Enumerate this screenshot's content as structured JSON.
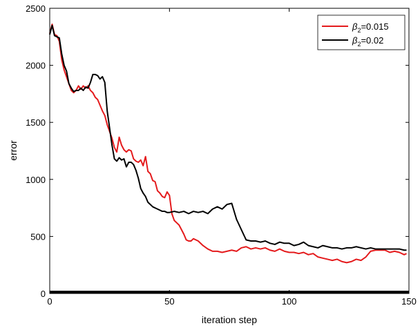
{
  "chart_data": {
    "type": "line",
    "xlabel": "iteration step",
    "ylabel": "error",
    "xlim": [
      0,
      150
    ],
    "ylim": [
      0,
      2500
    ],
    "xticks": [
      0,
      50,
      100,
      150
    ],
    "yticks": [
      0,
      500,
      1000,
      1500,
      2000,
      2500
    ],
    "grid": false,
    "legend_position": "top-right",
    "series": [
      {
        "name_symbol": "β",
        "name_sub": "2",
        "name_suffix": "=0.015",
        "color": "#e41a1c",
        "x": [
          0,
          1,
          2,
          3,
          4,
          5,
          6,
          7,
          8,
          9,
          10,
          11,
          12,
          13,
          14,
          15,
          16,
          17,
          18,
          19,
          20,
          21,
          22,
          23,
          24,
          25,
          26,
          27,
          28,
          29,
          30,
          31,
          32,
          33,
          34,
          35,
          36,
          37,
          38,
          39,
          40,
          41,
          42,
          43,
          44,
          45,
          46,
          47,
          48,
          49,
          50,
          51,
          52,
          53,
          54,
          55,
          56,
          57,
          58,
          59,
          60,
          62,
          64,
          66,
          68,
          70,
          72,
          74,
          76,
          78,
          80,
          82,
          84,
          86,
          88,
          90,
          92,
          94,
          96,
          98,
          100,
          102,
          104,
          106,
          108,
          110,
          112,
          114,
          116,
          118,
          120,
          122,
          124,
          126,
          128,
          130,
          132,
          134,
          136,
          138,
          140,
          142,
          144,
          146,
          148,
          149
        ],
        "y": [
          2280,
          2360,
          2270,
          2260,
          2210,
          2050,
          1960,
          1900,
          1840,
          1780,
          1760,
          1780,
          1820,
          1790,
          1820,
          1800,
          1820,
          1780,
          1760,
          1720,
          1700,
          1650,
          1600,
          1560,
          1480,
          1420,
          1360,
          1280,
          1240,
          1370,
          1300,
          1260,
          1240,
          1260,
          1250,
          1180,
          1160,
          1150,
          1170,
          1120,
          1200,
          1070,
          1050,
          990,
          980,
          900,
          880,
          850,
          840,
          890,
          860,
          700,
          640,
          620,
          600,
          560,
          520,
          470,
          460,
          460,
          480,
          460,
          420,
          390,
          370,
          370,
          360,
          370,
          380,
          370,
          400,
          410,
          390,
          400,
          390,
          400,
          380,
          370,
          390,
          370,
          360,
          360,
          350,
          360,
          340,
          350,
          320,
          310,
          300,
          290,
          300,
          280,
          270,
          280,
          300,
          290,
          320,
          370,
          380,
          380,
          380,
          360,
          370,
          360,
          340,
          350
        ],
        "values_note": ""
      },
      {
        "name_symbol": "β",
        "name_sub": "2",
        "name_suffix": "=0.02",
        "color": "#000000",
        "x": [
          0,
          1,
          2,
          3,
          4,
          5,
          6,
          7,
          8,
          9,
          10,
          11,
          12,
          13,
          14,
          15,
          16,
          17,
          18,
          19,
          20,
          21,
          22,
          23,
          24,
          25,
          26,
          27,
          28,
          29,
          30,
          31,
          32,
          33,
          34,
          35,
          36,
          37,
          38,
          39,
          40,
          41,
          42,
          43,
          44,
          45,
          46,
          47,
          48,
          49,
          50,
          52,
          54,
          56,
          58,
          60,
          62,
          64,
          66,
          68,
          70,
          72,
          74,
          76,
          78,
          80,
          82,
          84,
          86,
          88,
          90,
          92,
          94,
          96,
          98,
          100,
          102,
          104,
          106,
          108,
          110,
          112,
          114,
          116,
          118,
          120,
          122,
          124,
          126,
          128,
          130,
          132,
          134,
          136,
          138,
          140,
          142,
          144,
          146,
          148,
          149
        ],
        "y": [
          2270,
          2350,
          2260,
          2250,
          2240,
          2100,
          2000,
          1950,
          1840,
          1800,
          1770,
          1780,
          1780,
          1800,
          1780,
          1810,
          1800,
          1850,
          1920,
          1920,
          1910,
          1880,
          1900,
          1850,
          1600,
          1450,
          1300,
          1180,
          1160,
          1190,
          1170,
          1180,
          1110,
          1150,
          1150,
          1130,
          1080,
          1010,
          920,
          880,
          850,
          800,
          780,
          760,
          750,
          740,
          730,
          720,
          720,
          710,
          710,
          720,
          710,
          720,
          700,
          720,
          710,
          720,
          700,
          740,
          760,
          740,
          780,
          790,
          650,
          560,
          470,
          460,
          460,
          450,
          460,
          440,
          430,
          450,
          440,
          440,
          420,
          430,
          450,
          420,
          410,
          400,
          420,
          410,
          400,
          400,
          390,
          400,
          400,
          410,
          400,
          390,
          400,
          390,
          390,
          390,
          390,
          390,
          390,
          380,
          380
        ],
        "values_note": ""
      }
    ]
  }
}
